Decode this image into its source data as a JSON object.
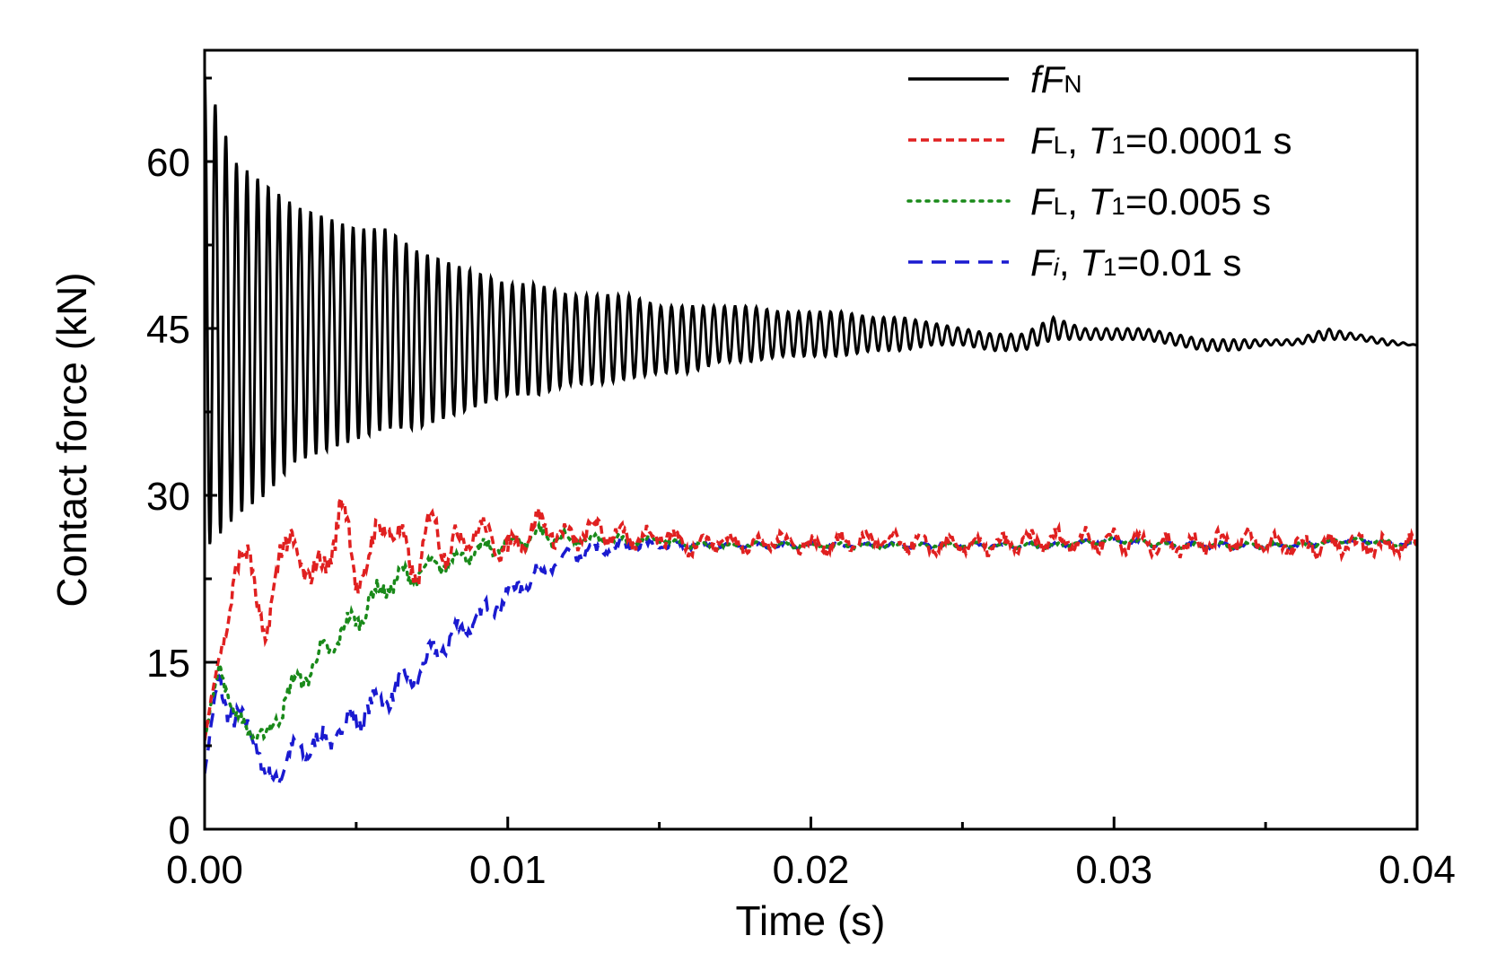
{
  "chart_data": {
    "type": "line",
    "title": "",
    "xlabel": "Time (s)",
    "ylabel": "Contact force (kN)",
    "xlim": [
      0,
      0.04
    ],
    "ylim": [
      0,
      70
    ],
    "x_ticks": [
      0,
      0.01,
      0.02,
      0.03,
      0.04
    ],
    "x_tick_labels": [
      "0.00",
      "0.01",
      "0.02",
      "0.03",
      "0.04"
    ],
    "y_ticks": [
      0,
      15,
      30,
      45,
      60
    ],
    "y_tick_labels": [
      "0",
      "15",
      "30",
      "45",
      "60"
    ],
    "grid": false,
    "legend_position": "top-right",
    "series": [
      {
        "name": "fF_N",
        "legend": {
          "p1": "f",
          "p1_italic": true,
          "p2": "F",
          "p2_italic": true,
          "sub": "N",
          "rest": ""
        },
        "color": "#000000",
        "dash": "solid",
        "x": [
          0,
          0.001,
          0.002,
          0.003,
          0.004,
          0.005,
          0.006,
          0.007,
          0.008,
          0.009,
          0.01,
          0.011,
          0.012,
          0.013,
          0.014,
          0.015,
          0.016,
          0.017,
          0.018,
          0.019,
          0.02,
          0.021,
          0.022,
          0.023,
          0.024,
          0.025,
          0.026,
          0.027,
          0.028,
          0.029,
          0.03,
          0.031,
          0.032,
          0.033,
          0.034,
          0.035,
          0.036,
          0.037,
          0.038,
          0.039,
          0.04
        ],
        "upper": [
          68,
          60,
          58,
          56,
          55,
          54,
          54,
          52,
          51,
          50,
          49,
          49,
          48,
          48,
          48,
          47,
          47,
          47,
          47,
          46.5,
          46.5,
          46.5,
          46,
          46,
          45.5,
          45,
          44.5,
          44.5,
          46,
          45,
          45,
          45,
          44.5,
          44,
          44,
          44,
          44,
          45,
          44.5,
          44,
          43.5
        ],
        "lower": [
          25,
          28,
          30,
          33,
          34,
          35,
          36,
          36,
          37,
          38,
          39,
          39,
          40,
          40,
          40.5,
          41,
          41,
          42,
          42,
          42.5,
          42.5,
          42.5,
          43,
          43,
          43.5,
          43.5,
          43,
          43,
          44,
          44,
          44,
          44,
          43.5,
          43,
          43,
          43.5,
          43.5,
          44,
          44,
          43.5,
          43.5
        ],
        "oscillation_period": 0.00035
      },
      {
        "name": "F_L, T_1=0.0001 s",
        "legend": {
          "p2": "F",
          "p2_italic": true,
          "sub": "L",
          "rest": ", T1=0.0001 s"
        },
        "color": "#e02020",
        "dash": "short-dash",
        "x": [
          0,
          0.0005,
          0.001,
          0.0015,
          0.002,
          0.0025,
          0.003,
          0.004,
          0.0045,
          0.005,
          0.006,
          0.007,
          0.0075,
          0.008,
          0.009,
          0.01,
          0.011,
          0.012,
          0.013,
          0.014,
          0.015,
          0.016,
          0.017,
          0.018,
          0.019,
          0.02,
          0.022,
          0.024,
          0.026,
          0.028,
          0.03,
          0.032,
          0.034,
          0.036,
          0.038,
          0.04
        ],
        "y": [
          8,
          16,
          22,
          26,
          15,
          27,
          24,
          23,
          30,
          22,
          28,
          23,
          28,
          25,
          27,
          25,
          27.5,
          26,
          27,
          26,
          26.5,
          25.5,
          26,
          25.5,
          26,
          25.5,
          26,
          25.5,
          25.5,
          26,
          26,
          25.5,
          26,
          25.5,
          25.5,
          25.5
        ],
        "wiggle_amplitude": [
          0,
          1,
          2,
          2,
          2,
          2.5,
          2,
          2,
          2.5,
          2,
          2,
          2,
          2,
          2,
          1.5,
          1.5,
          1.5,
          1.5,
          1.5,
          1.2,
          1.2,
          1.2,
          1,
          1,
          1,
          1,
          1,
          1,
          1,
          1.2,
          1.2,
          1.2,
          1.2,
          1.2,
          1.2,
          1.2
        ]
      },
      {
        "name": "F_L, T_1=0.005 s",
        "legend": {
          "p2": "F",
          "p2_italic": true,
          "sub": "L",
          "rest": ", T1=0.005 s"
        },
        "color": "#1a8a1a",
        "dash": "dot",
        "x": [
          0,
          0.0005,
          0.001,
          0.002,
          0.0025,
          0.003,
          0.004,
          0.005,
          0.006,
          0.007,
          0.008,
          0.009,
          0.01,
          0.011,
          0.012,
          0.013,
          0.014,
          0.015,
          0.016,
          0.018,
          0.02,
          0.022,
          0.024,
          0.026,
          0.028,
          0.03,
          0.032,
          0.034,
          0.036,
          0.038,
          0.04
        ],
        "y": [
          8,
          15,
          10,
          8,
          11,
          13,
          16,
          19,
          22,
          23,
          24,
          25,
          25.5,
          26.5,
          26,
          26,
          26,
          26,
          25.5,
          25.5,
          25.5,
          25.5,
          25.5,
          25.5,
          25.5,
          26,
          25.5,
          25.5,
          25.5,
          26,
          25.5
        ],
        "wiggle_amplitude": [
          0,
          1,
          1,
          1,
          1.5,
          1.5,
          1.5,
          1.5,
          1.5,
          1.2,
          1,
          1,
          1,
          1,
          0.8,
          0.6,
          0.5,
          0.4,
          0.4,
          0.3,
          0.3,
          0.3,
          0.3,
          0.3,
          0.3,
          0.3,
          0.3,
          0.3,
          0.3,
          0.3,
          0.3
        ]
      },
      {
        "name": "F_i, T_1=0.01 s",
        "legend": {
          "p2": "F",
          "p2_italic": true,
          "sub": "i",
          "sub_italic": true,
          "rest": ", T1=0.01 s"
        },
        "color": "#1a1ad0",
        "dash": "long-dash",
        "x": [
          0,
          0.0005,
          0.001,
          0.0015,
          0.002,
          0.003,
          0.004,
          0.005,
          0.006,
          0.007,
          0.008,
          0.009,
          0.01,
          0.011,
          0.012,
          0.013,
          0.014,
          0.015,
          0.016,
          0.018,
          0.02,
          0.022,
          0.024,
          0.026,
          0.028,
          0.03,
          0.032,
          0.034,
          0.036,
          0.038,
          0.04
        ],
        "y": [
          5,
          14,
          9,
          10,
          4,
          7,
          8,
          10,
          12,
          14,
          17,
          19,
          21,
          23,
          24.5,
          25,
          25.5,
          25.5,
          25.5,
          25.5,
          25.5,
          25.5,
          25.5,
          25.5,
          25.5,
          26,
          25.5,
          25.5,
          25.5,
          26,
          25.5
        ],
        "wiggle_amplitude": [
          0,
          2,
          2,
          1.5,
          1.5,
          1.5,
          1.5,
          1.5,
          1.5,
          1.5,
          1.5,
          1.2,
          1.2,
          1,
          1,
          0.8,
          0.6,
          0.5,
          0.4,
          0.3,
          0.3,
          0.3,
          0.3,
          0.3,
          0.3,
          0.3,
          0.3,
          0.3,
          0.3,
          0.3,
          0.3
        ]
      }
    ]
  }
}
